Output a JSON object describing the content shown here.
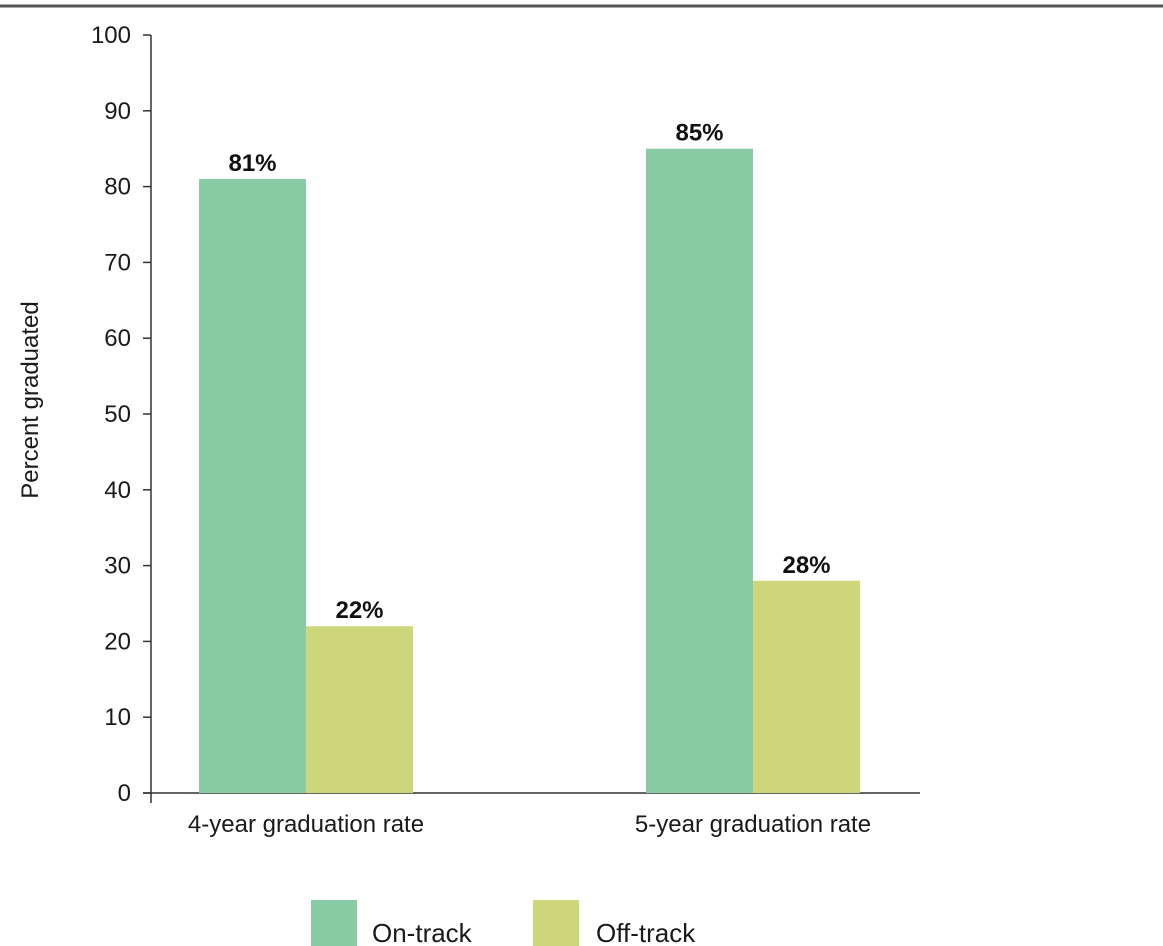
{
  "chart_data": {
    "type": "bar",
    "categories": [
      "4-year graduation rate",
      "5-year graduation rate"
    ],
    "series": [
      {
        "name": "On-track",
        "values": [
          81,
          85
        ],
        "labels": [
          "81%",
          "85%"
        ],
        "color": "#88CBA5"
      },
      {
        "name": "Off-track",
        "values": [
          22,
          28
        ],
        "labels": [
          "22%",
          "28%"
        ],
        "color": "#CED67C"
      }
    ],
    "title": "",
    "xlabel": "",
    "ylabel": "Percent graduated",
    "ylim": [
      0,
      100
    ],
    "yticks": [
      0,
      10,
      20,
      30,
      40,
      50,
      60,
      70,
      80,
      90,
      100
    ],
    "grid": false,
    "legend_position": "bottom"
  }
}
